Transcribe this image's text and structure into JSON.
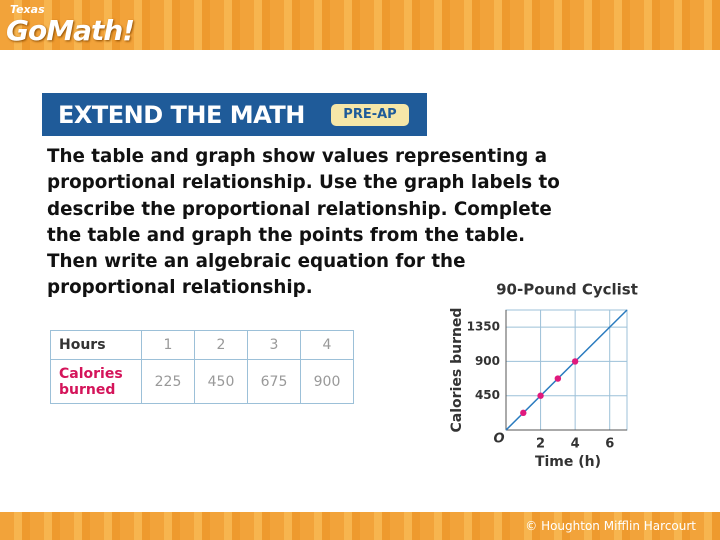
{
  "header": {
    "state": "Texas",
    "logo": "GoMath!"
  },
  "banner": {
    "title": "EXTEND THE MATH",
    "badge": "PRE-AP"
  },
  "body": {
    "lines": [
      "The table and graph show values representing a",
      "proportional relationship. Use the graph labels to",
      "describe the proportional relationship. Complete",
      "the table and graph the points from the table.",
      "Then write an algebraic equation for the",
      "proportional relationship."
    ]
  },
  "table": {
    "rows": [
      [
        "Hours",
        "1",
        "2",
        "3",
        "4"
      ],
      [
        "Calories burned",
        "225",
        "450",
        "675",
        "900"
      ]
    ]
  },
  "chart_data": {
    "type": "scatter",
    "title": "90-Pound Cyclist",
    "x_label": "Time (h)",
    "y_label": "Calories burned",
    "origin_label": "O",
    "x": [
      1,
      2,
      3,
      4
    ],
    "values": [
      225,
      450,
      675,
      900
    ],
    "color": "#e0197d",
    "line_color": "#2a7bbf",
    "xlim": [
      0,
      7
    ],
    "ylim": [
      0,
      1575
    ],
    "xticks": [
      2,
      4,
      6
    ],
    "yticks": [
      450,
      900,
      1350
    ],
    "grid": true
  },
  "footer": {
    "copyright": "© Houghton Mifflin Harcourt"
  }
}
